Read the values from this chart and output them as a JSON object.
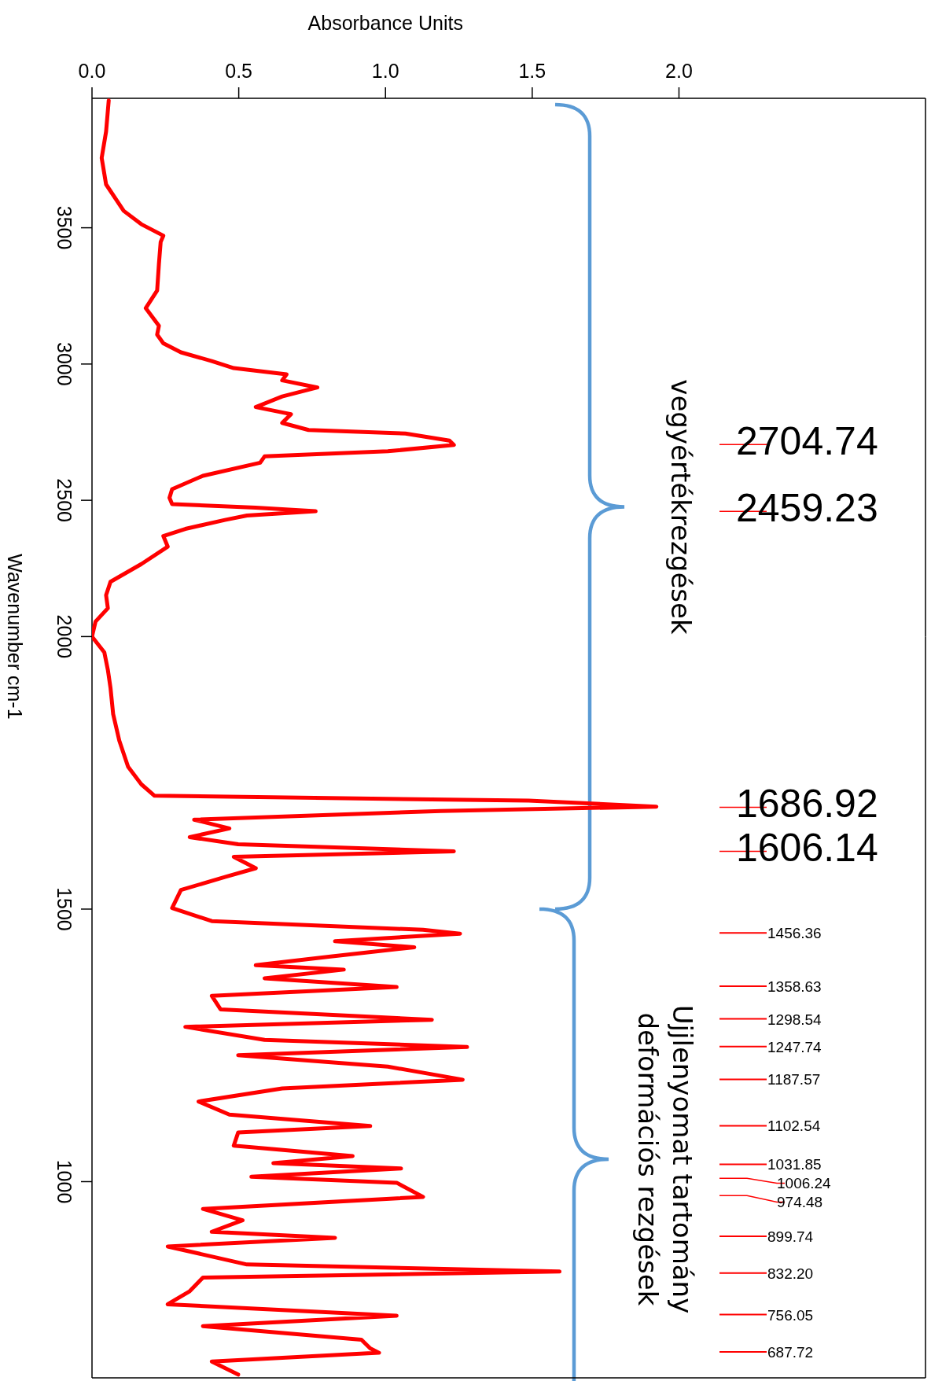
{
  "chart_data": [
    {
      "type": "line",
      "xlabel": "Absorbance Units",
      "ylabel": "Wavenumber cm-1",
      "xlim": [
        0,
        2.84
      ],
      "xticks": [
        {
          "value": 0,
          "label": "0.0"
        },
        0.5,
        {
          "value": 1,
          "label": "1.0"
        },
        1.5,
        {
          "value": 2,
          "label": "2.0"
        }
      ],
      "ylim": [
        2000,
        3975
      ],
      "yticks": [
        3500,
        3000,
        2500,
        2000
      ],
      "line_style": "solid",
      "series": [
        {
          "color": "#ff0000",
          "x": [
            0.057,
            0.048,
            0.033,
            0.048,
            0.108,
            0.168,
            0.243,
            0.234,
            0.228,
            0.222,
            0.183,
            0.228,
            0.222,
            0.243,
            0.303,
            0.408,
            0.483,
            0.663,
            0.648,
            0.768,
            0.648,
            0.558,
            0.678,
            0.648,
            0.738,
            1.068,
            1.218,
            1.233,
            1.008,
            0.588,
            0.573,
            0.378,
            0.273,
            0.264,
            0.273,
            0.558,
            0.762,
            0.528,
            0.453,
            0.318,
            0.243,
            0.258,
            0.168,
            0.063,
            0.048,
            0.054,
            0.012,
            0
          ],
          "values": [
            3967,
            3853,
            3756,
            3659,
            3562,
            3513,
            3471,
            3448,
            3367,
            3270,
            3205,
            3140,
            3108,
            3076,
            3043,
            3011,
            2985,
            2962,
            2940,
            2914,
            2881,
            2842,
            2816,
            2784,
            2758,
            2745,
            2719,
            2703,
            2680,
            2661,
            2638,
            2590,
            2541,
            2509,
            2486,
            2473,
            2460,
            2444,
            2428,
            2395,
            2369,
            2330,
            2266,
            2201,
            2152,
            2104,
            2055,
            2000
          ]
        }
      ],
      "annotations": [
        "2704.74",
        "2459.23",
        "vegyértékrezgések"
      ]
    },
    {
      "type": "line",
      "tick_labels": "y",
      "xlim": [
        0,
        2.84
      ],
      "ylim": [
        640,
        2000
      ],
      "yticks": [
        1500,
        1000
      ],
      "line_style": "solid",
      "series": [
        {
          "color": "#ff0000",
          "x": [
            0,
            0.042,
            0.054,
            0.063,
            0.072,
            0.093,
            0.123,
            0.168,
            0.213,
            1.488,
            1.923,
            1.188,
            0.348,
            0.468,
            0.333,
            0.498,
            1.233,
            0.483,
            0.558,
            0.453,
            0.303,
            0.273,
            0.408,
            1.128,
            1.254,
            0.828,
            1.098,
            0.813,
            0.558,
            0.858,
            0.588,
            1.038,
            0.408,
            0.438,
            1.158,
            0.318,
            0.588,
            1.278,
            0.498,
            1.008,
            1.263,
            0.648,
            0.363,
            0.468,
            0.948,
            0.498,
            0.483,
            0.888,
            0.618,
            1.053,
            0.543,
            1.038,
            1.128,
            0.378,
            0.513,
            0.408,
            0.828,
            0.258,
            0.528,
            1.593,
            0.378,
            0.333,
            0.258,
            1.038,
            0.378,
            0.918,
            0.948,
            0.978,
            0.408,
            0.498
          ],
          "values": [
            2000,
            1971,
            1939,
            1906,
            1858,
            1809,
            1761,
            1729,
            1708,
            1699,
            1688,
            1680,
            1664,
            1648,
            1632,
            1619,
            1606,
            1596,
            1575,
            1559,
            1535,
            1502,
            1478,
            1462,
            1455,
            1441,
            1430,
            1413,
            1397,
            1389,
            1373,
            1357,
            1341,
            1316,
            1297,
            1284,
            1260,
            1247,
            1232,
            1211,
            1187,
            1171,
            1147,
            1123,
            1102,
            1090,
            1066,
            1047,
            1034,
            1024,
            1009,
            998,
            972,
            950,
            929,
            908,
            897,
            881,
            848,
            835,
            824,
            799,
            775,
            754,
            735,
            710,
            694,
            686,
            670,
            646
          ]
        }
      ],
      "annotations": [
        "1686.92",
        "1606.14",
        "1456.36",
        "1358.63",
        "1298.54",
        "1247.74",
        "1187.57",
        "1102.54",
        "1031.85",
        "1006.24",
        "974.48",
        "899.74",
        "832.20",
        "756.05",
        "687.72",
        "Ujjlenyomat tartomány\ndeformációs rezgések"
      ]
    }
  ]
}
